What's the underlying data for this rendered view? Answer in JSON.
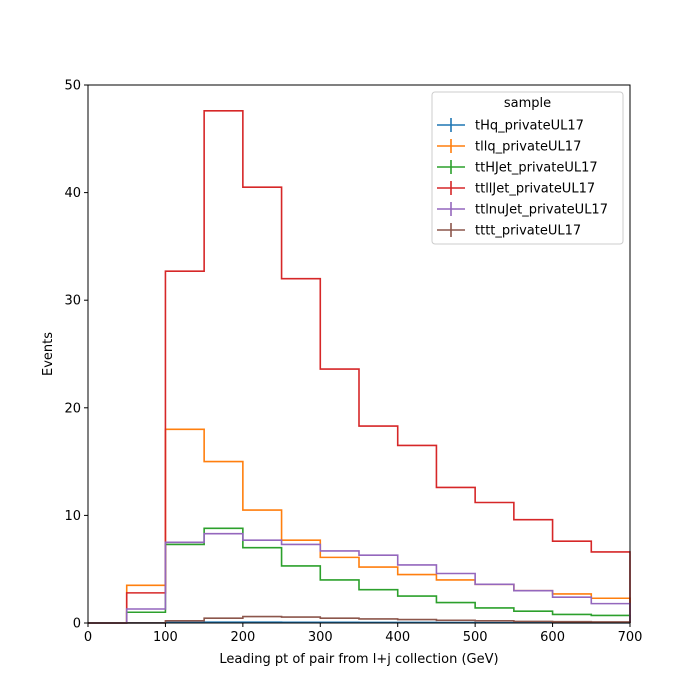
{
  "chart_data": {
    "type": "step-histogram",
    "xlabel": "Leading pt of pair from l+j collection (GeV)",
    "ylabel": "Events",
    "xlim": [
      0,
      700
    ],
    "ylim": [
      0,
      50
    ],
    "xticks": [
      0,
      100,
      200,
      300,
      400,
      500,
      600,
      700
    ],
    "yticks": [
      0,
      10,
      20,
      30,
      40,
      50
    ],
    "grid": false,
    "legend": {
      "title": "sample",
      "position": "top-right"
    },
    "bin_edges": [
      0,
      50,
      100,
      150,
      200,
      250,
      300,
      350,
      400,
      450,
      500,
      550,
      600,
      650,
      700
    ],
    "series": [
      {
        "name": "tHq_privateUL17",
        "color": "#1f77b4",
        "values": [
          0,
          0.02,
          0.05,
          0.08,
          0.08,
          0.07,
          0.06,
          0.05,
          0.05,
          0.04,
          0.03,
          0.03,
          0.02,
          0.02
        ]
      },
      {
        "name": "tllq_privateUL17",
        "color": "#ff7f0e",
        "values": [
          0,
          3.5,
          18.0,
          15.0,
          10.5,
          7.7,
          6.1,
          5.2,
          4.5,
          4.0,
          3.6,
          3.0,
          2.7,
          2.3
        ]
      },
      {
        "name": "ttHJet_privateUL17",
        "color": "#2ca02c",
        "values": [
          0,
          1.0,
          7.3,
          8.8,
          7.0,
          5.3,
          4.0,
          3.1,
          2.5,
          1.9,
          1.4,
          1.1,
          0.8,
          0.7
        ]
      },
      {
        "name": "ttllJet_privateUL17",
        "color": "#d62728",
        "values": [
          0,
          2.8,
          32.7,
          47.6,
          40.5,
          32.0,
          23.6,
          18.3,
          16.5,
          12.6,
          11.2,
          9.6,
          7.6,
          6.6
        ]
      },
      {
        "name": "ttlnuJet_privateUL17",
        "color": "#9467bd",
        "values": [
          0,
          1.3,
          7.5,
          8.3,
          7.7,
          7.3,
          6.7,
          6.3,
          5.4,
          4.6,
          3.6,
          3.0,
          2.4,
          1.8
        ]
      },
      {
        "name": "tttt_privateUL17",
        "color": "#8c564b",
        "values": [
          0,
          0.01,
          0.2,
          0.45,
          0.6,
          0.55,
          0.45,
          0.38,
          0.32,
          0.25,
          0.2,
          0.15,
          0.12,
          0.1
        ]
      }
    ]
  }
}
